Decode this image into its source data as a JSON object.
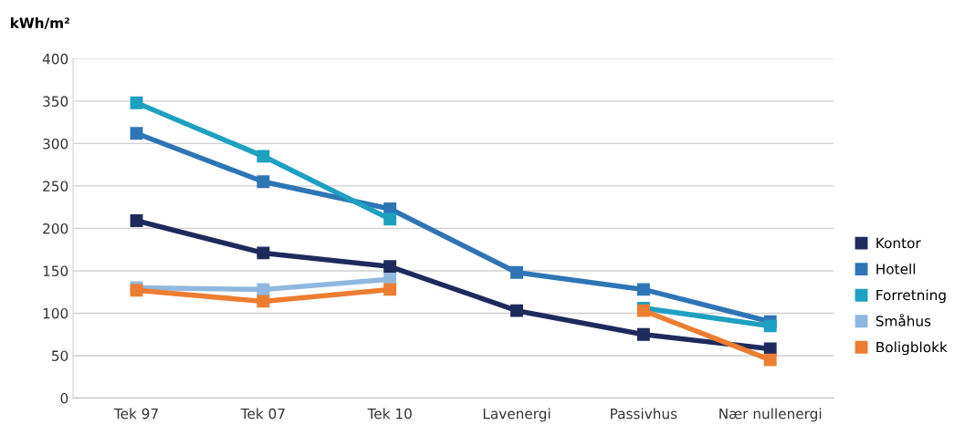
{
  "chart_data": {
    "type": "line",
    "ylabel": "kWh/m²",
    "categories": [
      "Tek 97",
      "Tek 07",
      "Tek 10",
      "Lavenergi",
      "Passivhus",
      "Nær nullenergi"
    ],
    "series": [
      {
        "name": "Kontor",
        "color": "#1f2a5c",
        "values": [
          209,
          171,
          155,
          103,
          75,
          58
        ]
      },
      {
        "name": "Hotell",
        "color": "#2e75b6",
        "values": [
          312,
          255,
          223,
          148,
          128,
          90
        ]
      },
      {
        "name": "Forretning",
        "color": "#1ea0c0",
        "values": [
          348,
          285,
          211,
          null,
          106,
          85
        ]
      },
      {
        "name": "Småhus",
        "color": "#8fb8e0",
        "values": [
          130,
          128,
          140,
          null,
          null,
          null
        ]
      },
      {
        "name": "Boligblokk",
        "color": "#ed7d31",
        "values": [
          127,
          114,
          128,
          null,
          103,
          45
        ]
      }
    ],
    "ylim": [
      0,
      400
    ],
    "yticks": [
      0,
      50,
      100,
      150,
      200,
      250,
      300,
      350,
      400
    ],
    "grid": "y",
    "legend": "right",
    "marker": "square",
    "line_style": "solid"
  }
}
